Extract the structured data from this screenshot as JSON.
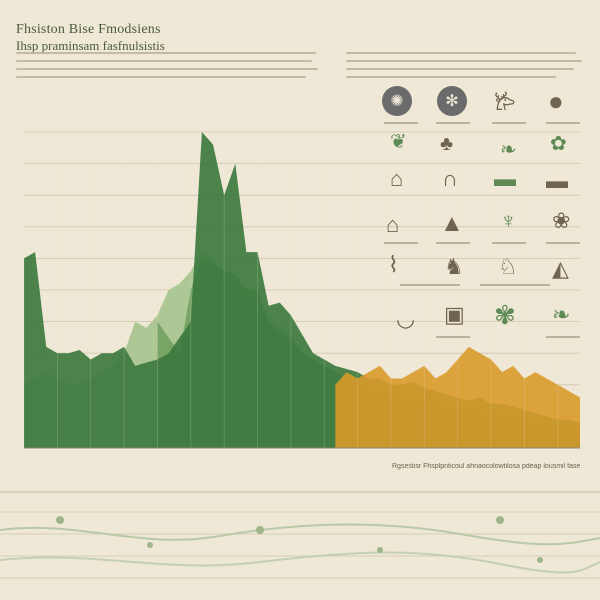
{
  "title": "Fhsiston Bise Fmodsiens",
  "subtitle": "Ihsp praminsam fasfnulsistis",
  "infographic_caption": "Rgsestisr Fhsplpnticoul ahnaocolowtilosa pdeap lousmil fase",
  "colors": {
    "background": "#efe8d6",
    "dark_green": "#4f8a4a",
    "mid_green": "#6f9f5e",
    "light_green": "#a9c690",
    "orange": "#d99a2b",
    "grid": "#cfc6ae"
  },
  "icons": [
    "leaf-cluster",
    "tree",
    "deer",
    "bear",
    "fern",
    "forest",
    "cow",
    "fox",
    "house",
    "hill",
    "heron",
    "wreath",
    "bird",
    "elk",
    "camel",
    "tree-small"
  ],
  "chart_data": {
    "type": "area",
    "title": "",
    "xlabel": "",
    "ylabel": "",
    "grid": true,
    "x": [
      0,
      1,
      2,
      3,
      4,
      5,
      6,
      7,
      8,
      9,
      10,
      11,
      12,
      13,
      14,
      15,
      16,
      17,
      18,
      19,
      20,
      21,
      22,
      23,
      24,
      25,
      26,
      27,
      28,
      29,
      30,
      31,
      32,
      33,
      34,
      35,
      36,
      37,
      38,
      39,
      40,
      41,
      42,
      43,
      44,
      45,
      46,
      47,
      48,
      49,
      50
    ],
    "ylim": [
      0,
      100
    ],
    "series": [
      {
        "key": "s1",
        "color": "#3d7a3f",
        "values": [
          60,
          62,
          32,
          30,
          30,
          31,
          28,
          30,
          30,
          32,
          26,
          27,
          28,
          30,
          35,
          40,
          100,
          96,
          80,
          90,
          62,
          62,
          45,
          46,
          42,
          36,
          30,
          28,
          26,
          25,
          24,
          22,
          22,
          20,
          20,
          21,
          19,
          18,
          17,
          16,
          15,
          16,
          14,
          14,
          13,
          12,
          11,
          10,
          9,
          9,
          8
        ]
      },
      {
        "key": "s2",
        "color": "#6f9f5e",
        "values": [
          0,
          0,
          0,
          0,
          0,
          0,
          0,
          0,
          0,
          0,
          0,
          0,
          40,
          35,
          30,
          50,
          60,
          58,
          56,
          55,
          50,
          50,
          40,
          36,
          34,
          30,
          28,
          26,
          24,
          22,
          20,
          18,
          18,
          17,
          16,
          16,
          15,
          14,
          13,
          12,
          12,
          11,
          11,
          10,
          9,
          9,
          8,
          8,
          7,
          7,
          6
        ]
      },
      {
        "key": "s3",
        "color": "#a9c690",
        "values": [
          20,
          22,
          24,
          22,
          20,
          20,
          22,
          24,
          26,
          30,
          40,
          38,
          42,
          50,
          52,
          56,
          62,
          60,
          54,
          52,
          46,
          48,
          40,
          38,
          36,
          30,
          28,
          26,
          24,
          22,
          20,
          20,
          18,
          18,
          16,
          16,
          15,
          14,
          14,
          13,
          12,
          12,
          11,
          10,
          10,
          9,
          9,
          8,
          8,
          7,
          7
        ]
      },
      {
        "key": "s4",
        "color": "#d99a2b",
        "values": [
          0,
          0,
          0,
          0,
          0,
          0,
          0,
          0,
          0,
          0,
          0,
          0,
          0,
          0,
          0,
          0,
          0,
          0,
          0,
          0,
          0,
          0,
          0,
          0,
          0,
          0,
          0,
          0,
          20,
          24,
          22,
          24,
          26,
          22,
          22,
          24,
          26,
          22,
          24,
          28,
          32,
          30,
          28,
          24,
          26,
          22,
          24,
          22,
          20,
          18,
          16
        ]
      }
    ]
  }
}
